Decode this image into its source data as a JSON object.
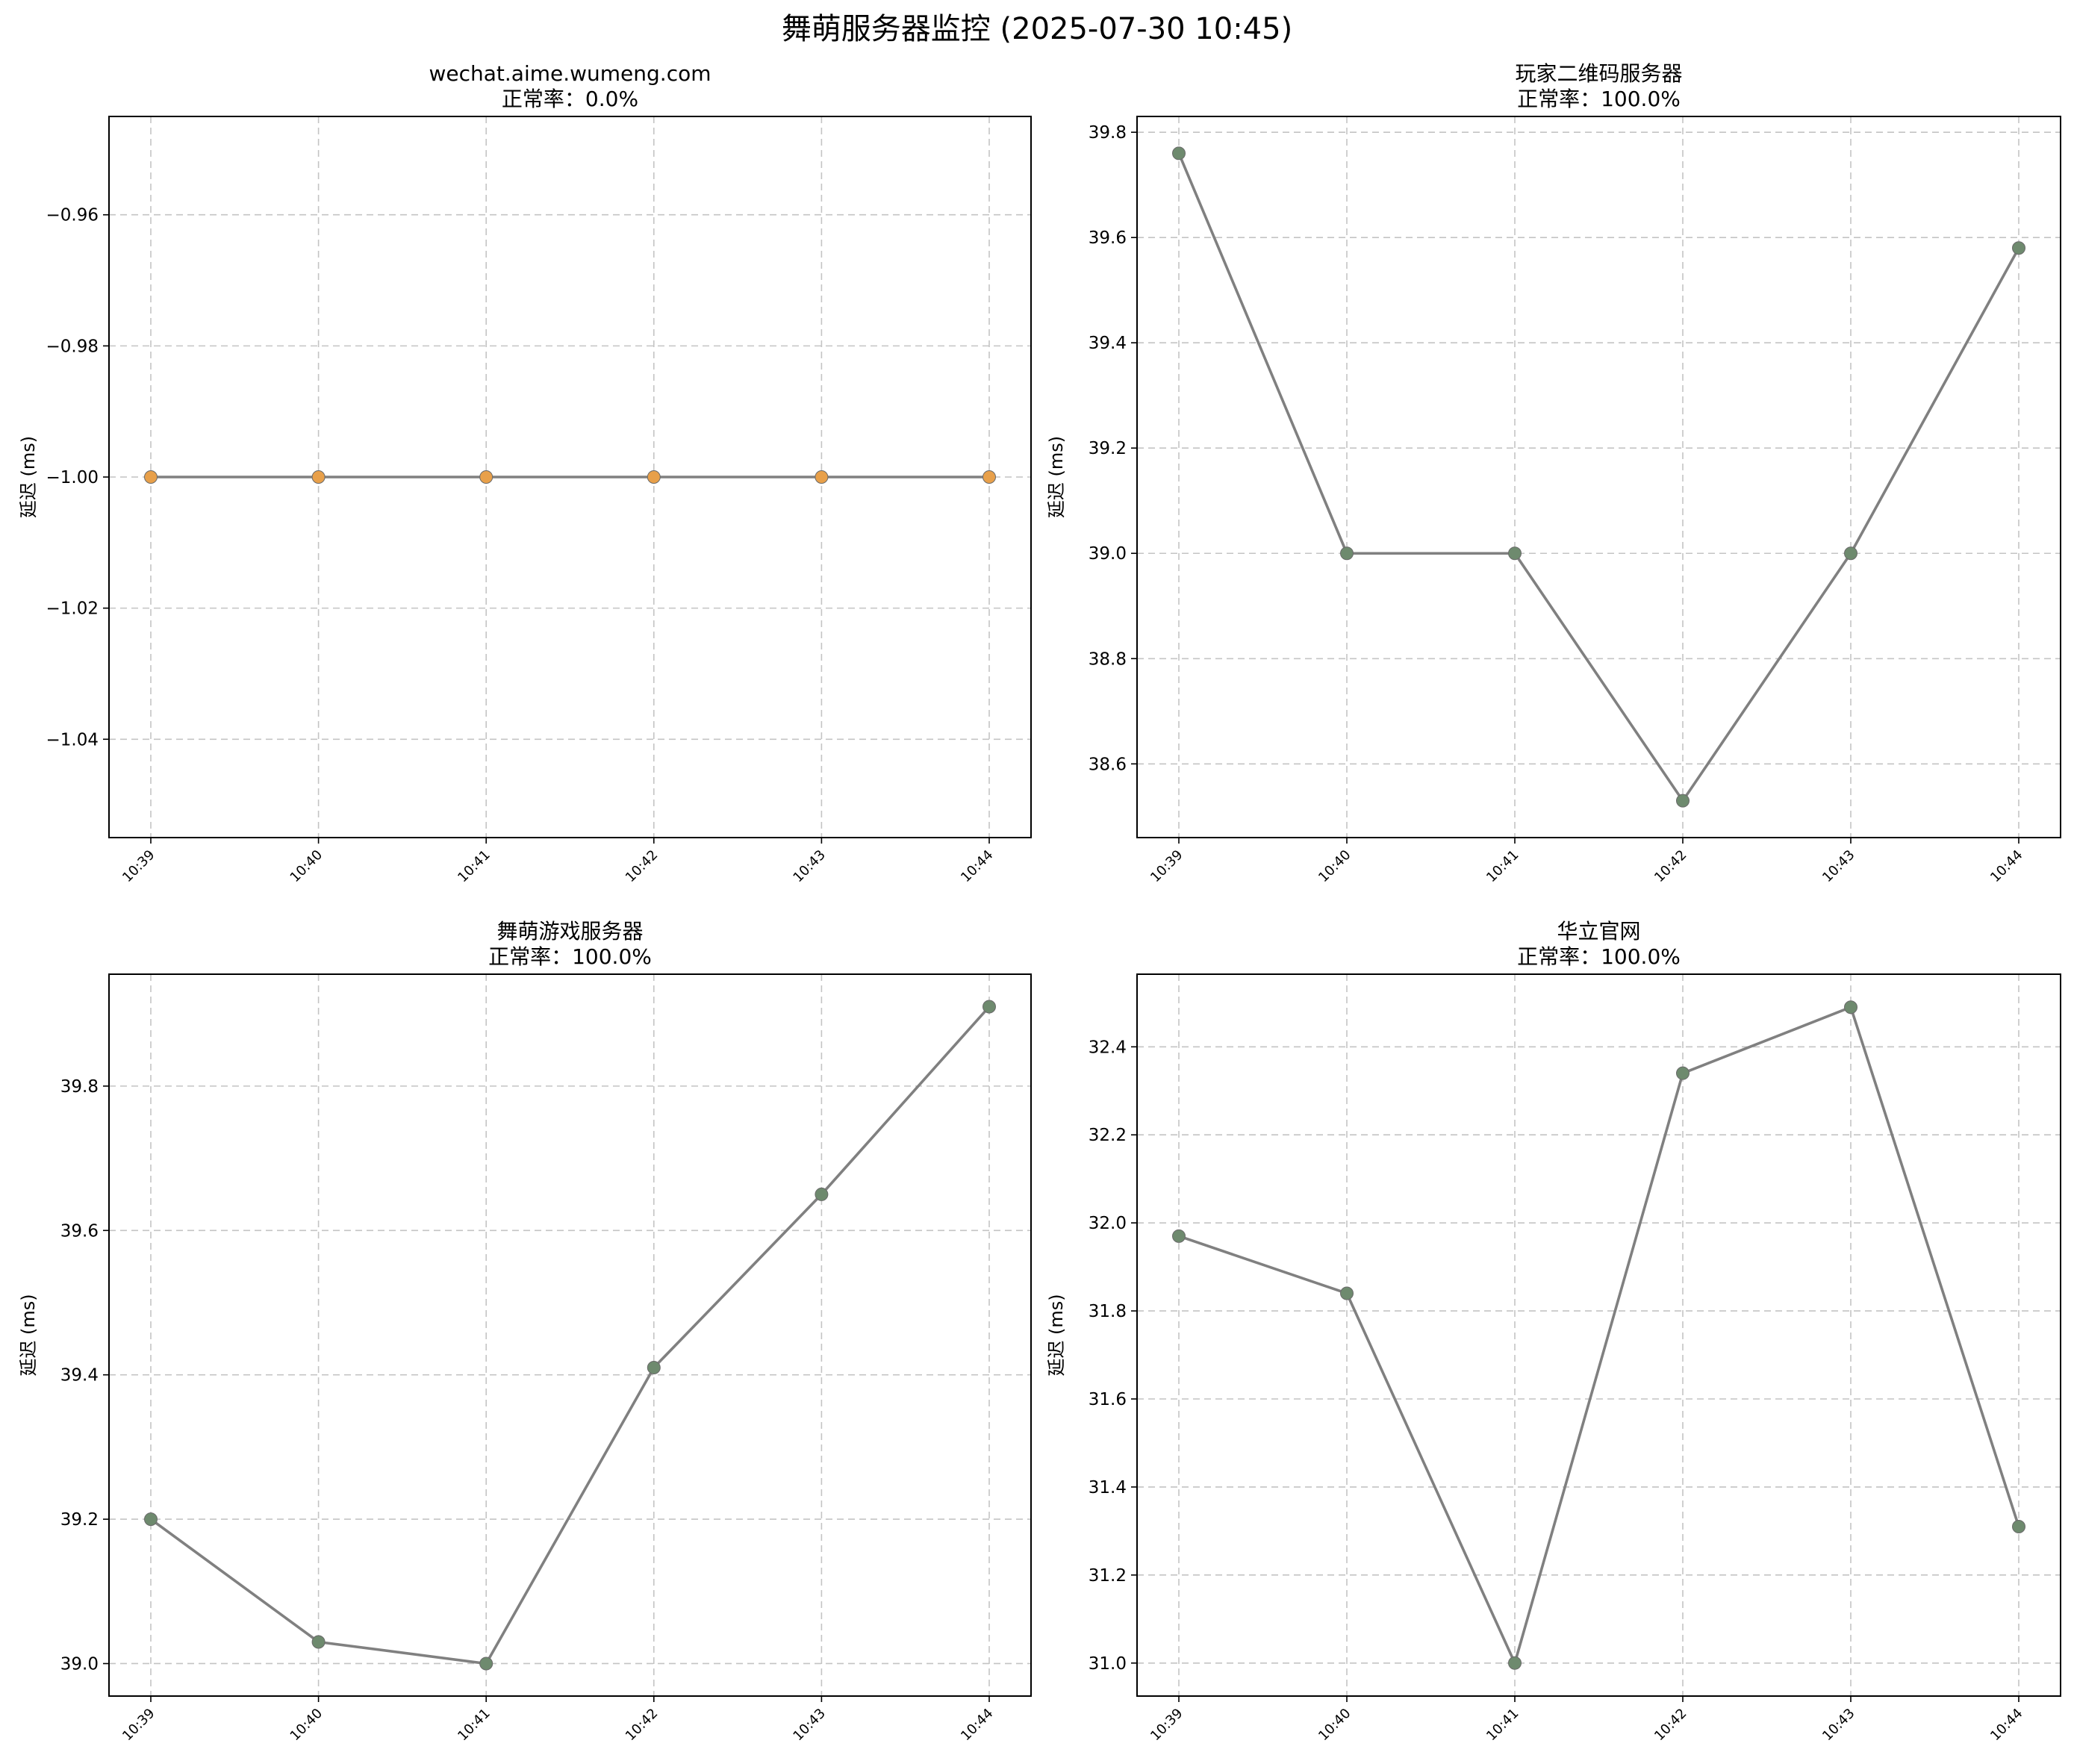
{
  "figure": {
    "suptitle": "舞萌服务器监控 (2025-07-30 10:45)"
  },
  "chart_data": [
    {
      "type": "line",
      "title": "wechat.aime.wumeng.com",
      "subtitle": "正常率：0.0%",
      "ylabel": "延迟 (ms)",
      "xlabel": "",
      "x": [
        "10:39",
        "10:40",
        "10:41",
        "10:42",
        "10:43",
        "10:44"
      ],
      "values": [
        -1,
        -1,
        -1,
        -1,
        -1,
        -1
      ],
      "ylim": [
        -1.055,
        -0.945
      ],
      "yticks": [
        -0.96,
        -0.98,
        -1.0,
        -1.02,
        -1.04
      ],
      "ytick_labels": [
        "−0.96",
        "−0.98",
        "−1.00",
        "−1.02",
        "−1.04"
      ],
      "grid": true,
      "line_color": "#808080",
      "marker_color": "#e8a04a"
    },
    {
      "type": "line",
      "title": "玩家二维码服务器",
      "subtitle": "正常率：100.0%",
      "ylabel": "延迟 (ms)",
      "xlabel": "",
      "x": [
        "10:39",
        "10:40",
        "10:41",
        "10:42",
        "10:43",
        "10:44"
      ],
      "values": [
        39.76,
        39.0,
        39.0,
        38.53,
        39.0,
        39.58
      ],
      "ylim": [
        38.46,
        39.83
      ],
      "yticks": [
        38.6,
        38.8,
        39.0,
        39.2,
        39.4,
        39.6,
        39.8
      ],
      "ytick_labels": [
        "38.6",
        "38.8",
        "39.0",
        "39.2",
        "39.4",
        "39.6",
        "39.8"
      ],
      "grid": true,
      "line_color": "#808080",
      "marker_color": "#6e8a6e"
    },
    {
      "type": "line",
      "title": "舞萌游戏服务器",
      "subtitle": "正常率：100.0%",
      "ylabel": "延迟 (ms)",
      "xlabel": "",
      "x": [
        "10:39",
        "10:40",
        "10:41",
        "10:42",
        "10:43",
        "10:44"
      ],
      "values": [
        39.2,
        39.03,
        39.0,
        39.41,
        39.65,
        39.91
      ],
      "ylim": [
        38.955,
        39.955
      ],
      "yticks": [
        39.0,
        39.2,
        39.4,
        39.6,
        39.8
      ],
      "ytick_labels": [
        "39.0",
        "39.2",
        "39.4",
        "39.6",
        "39.8"
      ],
      "grid": true,
      "line_color": "#808080",
      "marker_color": "#6e8a6e"
    },
    {
      "type": "line",
      "title": "华立官网",
      "subtitle": "正常率：100.0%",
      "ylabel": "延迟 (ms)",
      "xlabel": "",
      "x": [
        "10:39",
        "10:40",
        "10:41",
        "10:42",
        "10:43",
        "10:44"
      ],
      "values": [
        31.97,
        31.84,
        31.0,
        32.34,
        32.49,
        31.31
      ],
      "ylim": [
        30.925,
        32.565
      ],
      "yticks": [
        31.0,
        31.2,
        31.4,
        31.6,
        31.8,
        32.0,
        32.2,
        32.4
      ],
      "ytick_labels": [
        "31.0",
        "31.2",
        "31.4",
        "31.6",
        "31.8",
        "32.0",
        "32.2",
        "32.4"
      ],
      "grid": true,
      "line_color": "#808080",
      "marker_color": "#6e8a6e"
    }
  ]
}
